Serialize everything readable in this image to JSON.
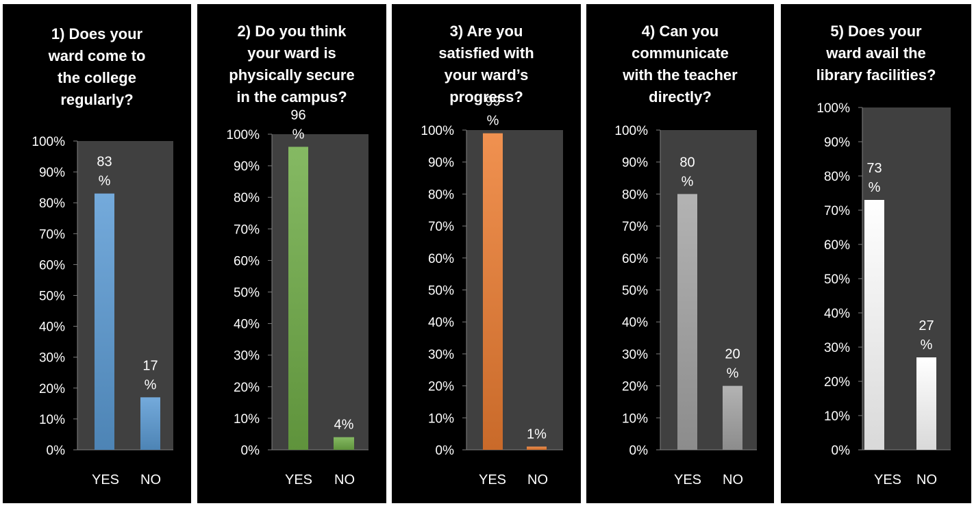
{
  "chart_data": [
    {
      "type": "bar",
      "title": "1) Does your ward come to the college regularly?",
      "title_lines": [
        "1) Does your",
        "ward come to",
        "the college",
        "regularly?"
      ],
      "categories": [
        "YES",
        "NO"
      ],
      "values": [
        83,
        17
      ],
      "data_labels": [
        [
          "83",
          "%"
        ],
        [
          "17",
          "%"
        ]
      ],
      "ylim": [
        0,
        100
      ],
      "y_ticks": [
        "0%",
        "10%",
        "20%",
        "30%",
        "40%",
        "50%",
        "60%",
        "70%",
        "80%",
        "90%",
        "100%"
      ],
      "color": "#5b9bd5",
      "grid": false,
      "legend": "none"
    },
    {
      "type": "bar",
      "title": "2) Do you think your ward is physically secure in the campus?",
      "title_lines": [
        "2) Do you think",
        "your ward is",
        "physically secure",
        "in the campus?"
      ],
      "categories": [
        "YES",
        "NO"
      ],
      "values": [
        96,
        4
      ],
      "data_labels": [
        [
          "96",
          "%"
        ],
        [
          "4%"
        ]
      ],
      "ylim": [
        0,
        100
      ],
      "y_ticks": [
        "0%",
        "10%",
        "20%",
        "30%",
        "40%",
        "50%",
        "60%",
        "70%",
        "80%",
        "90%",
        "100%"
      ],
      "color": "#70ad47",
      "grid": false,
      "legend": "none"
    },
    {
      "type": "bar",
      "title": "3) Are you satisfied with your ward’s progress?",
      "title_lines": [
        "3) Are you",
        "satisfied with",
        "your ward’s",
        "progress?"
      ],
      "categories": [
        "YES",
        "NO"
      ],
      "values": [
        99,
        1
      ],
      "data_labels": [
        [
          "99",
          "%"
        ],
        [
          "1%"
        ]
      ],
      "ylim": [
        0,
        100
      ],
      "y_ticks": [
        "0%",
        "10%",
        "20%",
        "30%",
        "40%",
        "50%",
        "60%",
        "70%",
        "80%",
        "90%",
        "100%"
      ],
      "color": "#ed7d31",
      "grid": false,
      "legend": "none"
    },
    {
      "type": "bar",
      "title": "4) Can you communicate with the teacher directly?",
      "title_lines": [
        "4) Can you",
        "communicate",
        "with the teacher",
        "directly?"
      ],
      "categories": [
        "YES",
        "NO"
      ],
      "values": [
        80,
        20
      ],
      "data_labels": [
        [
          "80",
          "%"
        ],
        [
          "20",
          "%"
        ]
      ],
      "ylim": [
        0,
        100
      ],
      "y_ticks": [
        "0%",
        "10%",
        "20%",
        "30%",
        "40%",
        "50%",
        "60%",
        "70%",
        "80%",
        "90%",
        "100%"
      ],
      "color": "#a5a5a5",
      "grid": false,
      "legend": "none"
    },
    {
      "type": "bar",
      "title": "5) Does your ward avail the library facilities?",
      "title_lines": [
        "5) Does your",
        "ward avail the",
        "library facilities?"
      ],
      "categories": [
        "YES",
        "NO"
      ],
      "values": [
        73,
        27
      ],
      "data_labels": [
        [
          "73",
          "%"
        ],
        [
          "27",
          "%"
        ]
      ],
      "ylim": [
        0,
        100
      ],
      "y_ticks": [
        "0%",
        "10%",
        "20%",
        "30%",
        "40%",
        "50%",
        "60%",
        "70%",
        "80%",
        "90%",
        "100%"
      ],
      "color": "#ffffff",
      "grid": false,
      "legend": "none"
    }
  ]
}
